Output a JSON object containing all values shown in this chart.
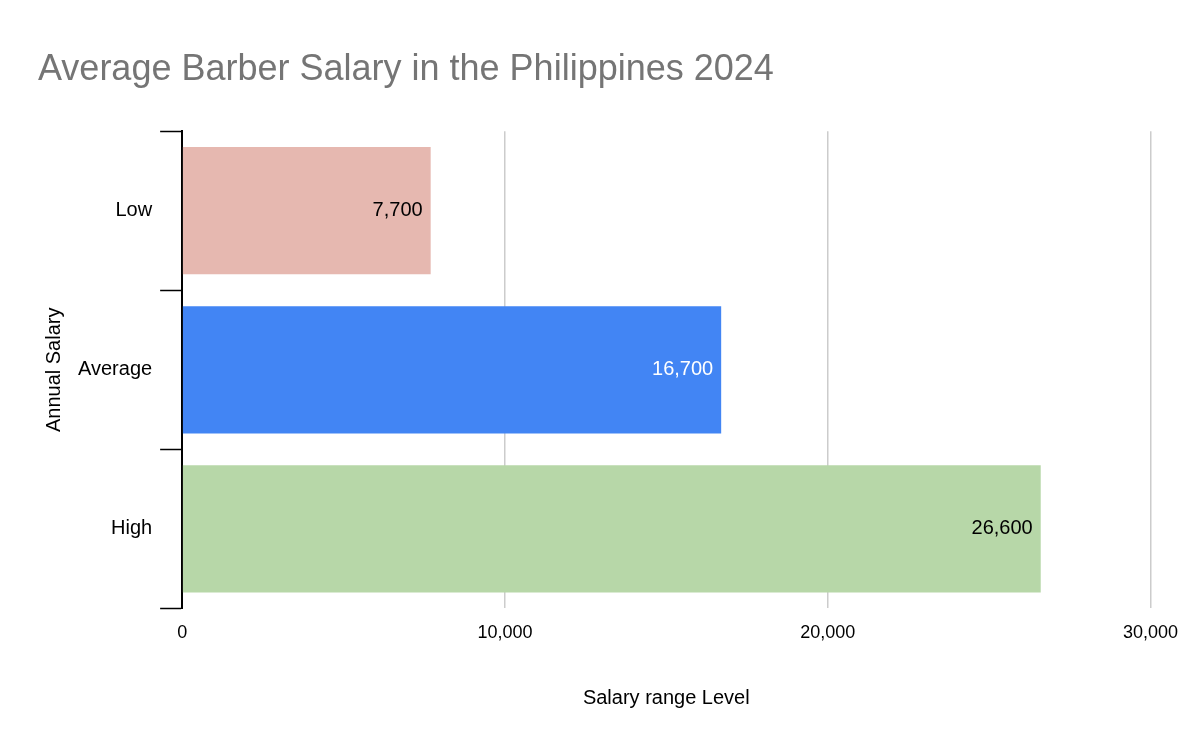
{
  "chart_data": {
    "type": "bar",
    "orientation": "horizontal",
    "title": "Average Barber Salary in the Philippines 2024",
    "xlabel": "Salary range Level",
    "ylabel": "Annual Salary",
    "categories": [
      "Low",
      "Average",
      "High"
    ],
    "values": [
      7700,
      16700,
      26600
    ],
    "colors": [
      "#e6b8b0",
      "#4285f4",
      "#b7d7a8"
    ],
    "value_labels": [
      "7,700",
      "16,700",
      "26,600"
    ],
    "xlim": [
      0,
      30000
    ],
    "xticks": [
      0,
      {
        "value": 10000,
        "label": "10,000"
      },
      {
        "value": 20000,
        "label": "20,000"
      },
      {
        "value": 30000,
        "label": "30,000"
      }
    ],
    "grid": "x"
  }
}
